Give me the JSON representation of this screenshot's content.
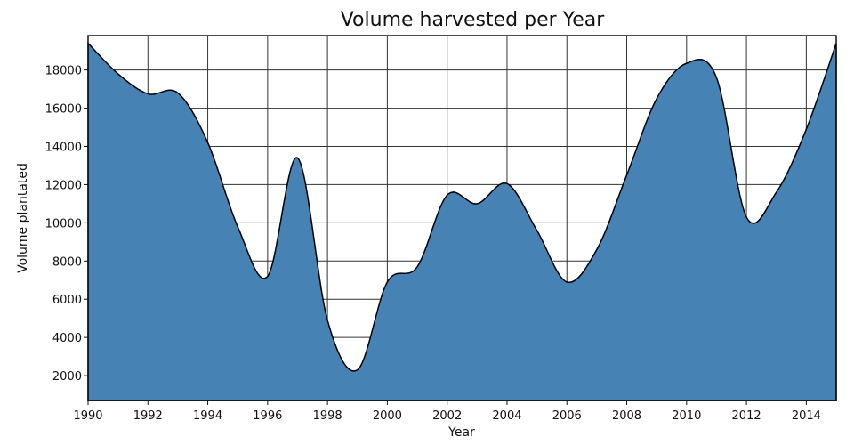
{
  "chart_data": {
    "type": "area",
    "title": "Volume harvested per Year",
    "xlabel": "Year",
    "ylabel": "Volume plantated",
    "xlim": [
      1990,
      2015
    ],
    "ylim": [
      700,
      19800
    ],
    "grid": true,
    "fill_color": "#4682b4",
    "line_color": "#000000",
    "x_ticks": [
      1990,
      1992,
      1994,
      1996,
      1998,
      2000,
      2002,
      2004,
      2006,
      2008,
      2010,
      2012,
      2014
    ],
    "y_ticks": [
      2000,
      4000,
      6000,
      8000,
      10000,
      12000,
      14000,
      16000,
      18000
    ],
    "x": [
      1990,
      1991,
      1992,
      1993,
      1994,
      1995,
      1996,
      1997,
      1998,
      1999,
      2000,
      2001,
      2002,
      2003,
      2004,
      2005,
      2006,
      2007,
      2008,
      2009,
      2010,
      2011,
      2012,
      2013,
      2014,
      2015
    ],
    "values": [
      19400,
      17800,
      16750,
      16800,
      14200,
      9800,
      7200,
      13400,
      4900,
      2300,
      6900,
      7700,
      11450,
      11000,
      12050,
      9600,
      6900,
      8600,
      12500,
      16500,
      18350,
      17600,
      10300,
      11600,
      14900,
      19400
    ]
  }
}
